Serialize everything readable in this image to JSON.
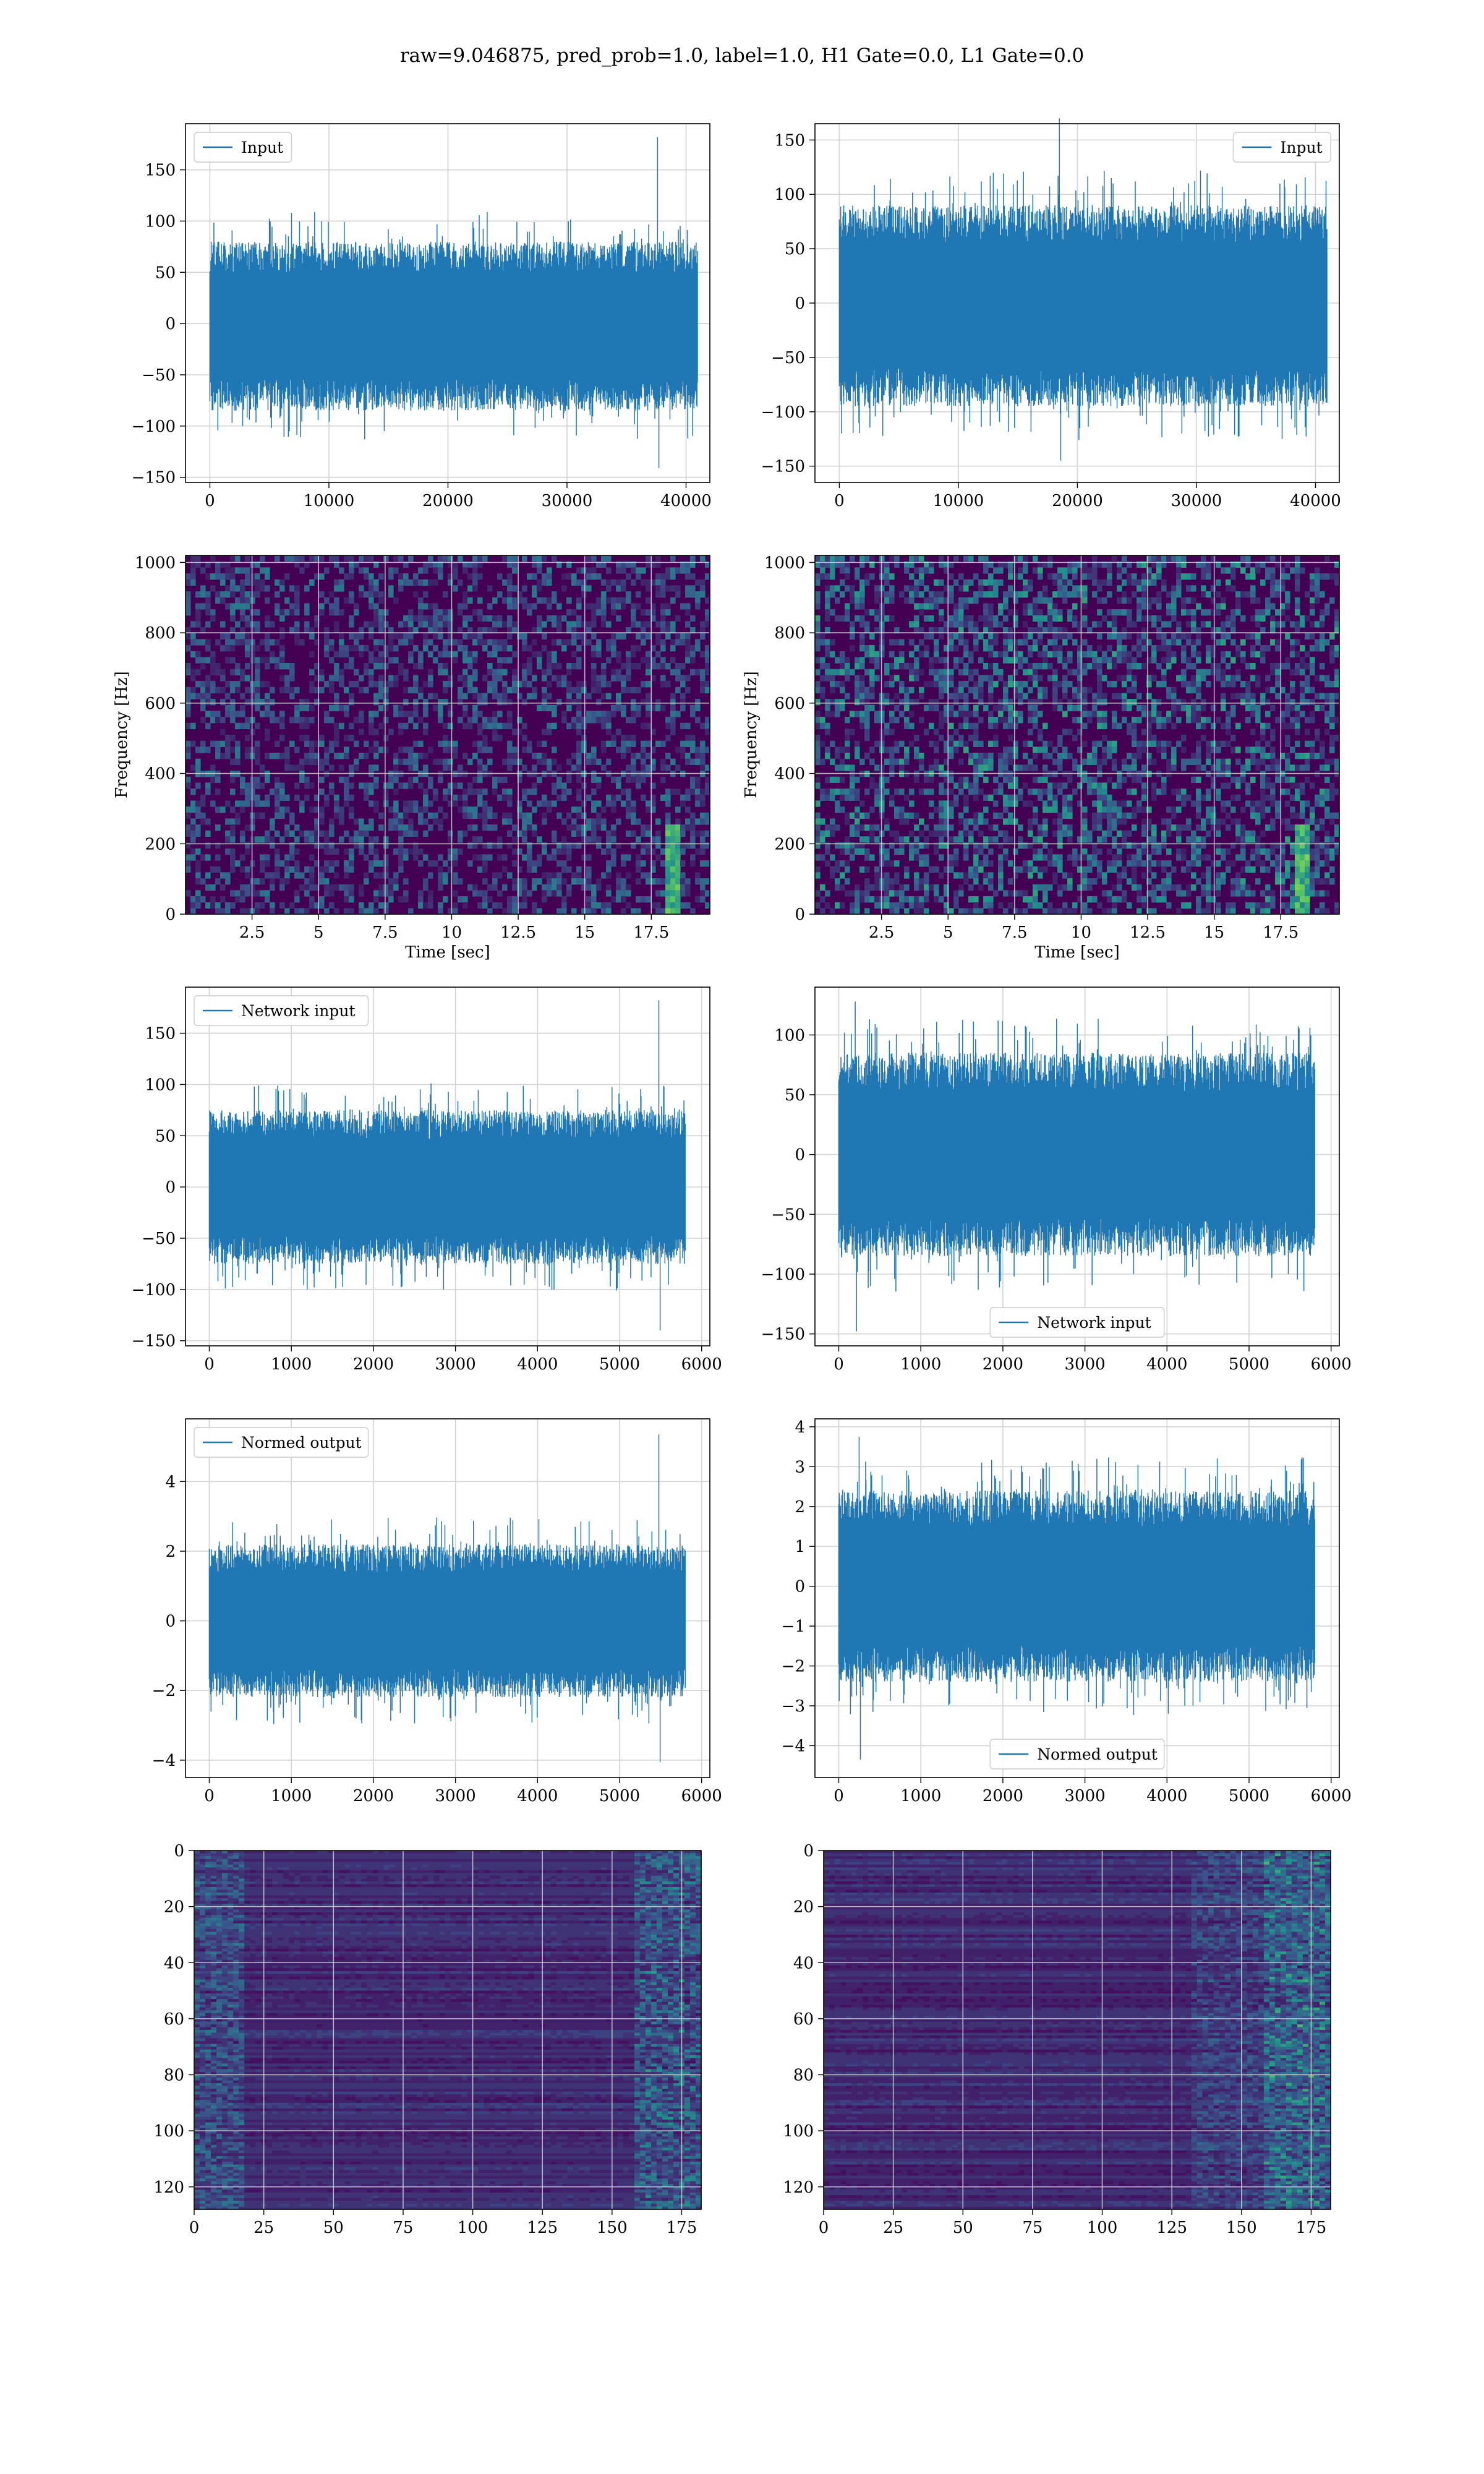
{
  "figure": {
    "suptitle": "raw=9.046875, pred_prob=1.0, label=1.0, H1 Gate=0.0, L1 Gate=0.0",
    "colors": {
      "series": "#1f77b4",
      "grid": "#d3d3d3",
      "axes": "#000000",
      "cmap_low": "#440154",
      "cmap_high": "#fde725"
    }
  },
  "chart_data": [
    {
      "id": "input-h1",
      "type": "line",
      "title": "",
      "xlabel": "",
      "ylabel": "",
      "legend": {
        "label": "Input",
        "loc": "upper left"
      },
      "xlim": [
        -2048,
        42000
      ],
      "ylim": [
        -155,
        195
      ],
      "xticks": [
        0,
        10000,
        20000,
        30000,
        40000
      ],
      "yticks": [
        -150,
        -100,
        -50,
        0,
        50,
        100,
        150
      ],
      "signal": {
        "n_samples": 40960,
        "x_range": [
          0,
          40960
        ],
        "band": [
          -85,
          80
        ],
        "extremes_max": 182,
        "extremes_min": -141,
        "spike_at": 37600
      },
      "grid": true
    },
    {
      "id": "input-l1",
      "type": "line",
      "title": "",
      "xlabel": "",
      "ylabel": "",
      "legend": {
        "label": "Input",
        "loc": "upper right"
      },
      "xlim": [
        -2048,
        42000
      ],
      "ylim": [
        -165,
        165
      ],
      "xticks": [
        0,
        10000,
        20000,
        30000,
        40000
      ],
      "yticks": [
        -150,
        -100,
        -50,
        0,
        50,
        100,
        150
      ],
      "signal": {
        "n_samples": 40960,
        "x_range": [
          0,
          40960
        ],
        "band": [
          -95,
          90
        ],
        "extremes_max": 170,
        "extremes_min": -145,
        "spike_at": 18500
      },
      "grid": true
    },
    {
      "id": "spectrogram-h1",
      "type": "heatmap",
      "title": "",
      "xlabel": "Time [sec]",
      "ylabel": "Frequency [Hz]",
      "xlim": [
        0,
        19.7
      ],
      "ylim": [
        0,
        1020
      ],
      "xticks": [
        2.5,
        5.0,
        7.5,
        10.0,
        12.5,
        15.0,
        17.5
      ],
      "yticks": [
        0,
        200,
        400,
        600,
        800,
        1000
      ],
      "chirp_time": 18.2,
      "grid": true
    },
    {
      "id": "spectrogram-l1",
      "type": "heatmap",
      "title": "",
      "xlabel": "Time [sec]",
      "ylabel": "Frequency [Hz]",
      "xlim": [
        0,
        19.7
      ],
      "ylim": [
        0,
        1020
      ],
      "xticks": [
        2.5,
        5.0,
        7.5,
        10.0,
        12.5,
        15.0,
        17.5
      ],
      "yticks": [
        0,
        200,
        400,
        600,
        800,
        1000
      ],
      "chirp_time": 18.2,
      "grid": true
    },
    {
      "id": "network-input-h1",
      "type": "line",
      "title": "",
      "xlabel": "",
      "ylabel": "",
      "legend": {
        "label": "Network input",
        "loc": "upper left"
      },
      "xlim": [
        -290,
        6100
      ],
      "ylim": [
        -155,
        195
      ],
      "xticks": [
        0,
        1000,
        2000,
        3000,
        4000,
        5000,
        6000
      ],
      "yticks": [
        -150,
        -100,
        -50,
        0,
        50,
        100,
        150
      ],
      "signal": {
        "n_samples": 5800,
        "x_range": [
          0,
          5800
        ],
        "band": [
          -75,
          75
        ],
        "extremes_max": 182,
        "extremes_min": -140,
        "spike_at": 5480
      },
      "grid": true
    },
    {
      "id": "network-input-l1",
      "type": "line",
      "title": "",
      "xlabel": "",
      "ylabel": "",
      "legend": {
        "label": "Network input",
        "loc": "lower center"
      },
      "xlim": [
        -290,
        6100
      ],
      "ylim": [
        -160,
        140
      ],
      "xticks": [
        0,
        1000,
        2000,
        3000,
        4000,
        5000,
        6000
      ],
      "yticks": [
        -150,
        -100,
        -50,
        0,
        50,
        100
      ],
      "signal": {
        "n_samples": 5800,
        "x_range": [
          0,
          5800
        ],
        "band": [
          -85,
          85
        ],
        "extremes_max": 128,
        "extremes_min": -148,
        "spike_at": 200
      },
      "grid": true
    },
    {
      "id": "normed-output-h1",
      "type": "line",
      "title": "",
      "xlabel": "",
      "ylabel": "",
      "legend": {
        "label": "Normed output",
        "loc": "upper left"
      },
      "xlim": [
        -290,
        6100
      ],
      "ylim": [
        -4.5,
        5.8
      ],
      "xticks": [
        0,
        1000,
        2000,
        3000,
        4000,
        5000,
        6000
      ],
      "yticks": [
        -4,
        -2,
        0,
        2,
        4
      ],
      "signal": {
        "n_samples": 5800,
        "x_range": [
          0,
          5800
        ],
        "band": [
          -2.2,
          2.2
        ],
        "extremes_max": 5.35,
        "extremes_min": -4.05,
        "spike_at": 5480
      },
      "grid": true
    },
    {
      "id": "normed-output-l1",
      "type": "line",
      "title": "",
      "xlabel": "",
      "ylabel": "",
      "legend": {
        "label": "Normed output",
        "loc": "lower center"
      },
      "xlim": [
        -290,
        6100
      ],
      "ylim": [
        -4.8,
        4.2
      ],
      "xticks": [
        0,
        1000,
        2000,
        3000,
        4000,
        5000,
        6000
      ],
      "yticks": [
        -4,
        -3,
        -2,
        -1,
        0,
        1,
        2,
        3,
        4
      ],
      "signal": {
        "n_samples": 5800,
        "x_range": [
          0,
          5800
        ],
        "band": [
          -2.4,
          2.4
        ],
        "extremes_max": 3.75,
        "extremes_min": -4.35,
        "spike_at": 250
      },
      "grid": true
    },
    {
      "id": "features-h1",
      "type": "heatmap",
      "title": "",
      "xlabel": "",
      "ylabel": "",
      "xlim": [
        0,
        182
      ],
      "ylim": [
        0,
        128
      ],
      "y_inverted": true,
      "xticks": [
        0,
        25,
        50,
        75,
        100,
        125,
        150,
        175
      ],
      "yticks": [
        0,
        20,
        40,
        60,
        80,
        100,
        120
      ],
      "grid": true
    },
    {
      "id": "features-l1",
      "type": "heatmap",
      "title": "",
      "xlabel": "",
      "ylabel": "",
      "xlim": [
        0,
        182
      ],
      "ylim": [
        0,
        128
      ],
      "y_inverted": true,
      "xticks": [
        0,
        25,
        50,
        75,
        100,
        125,
        150,
        175
      ],
      "yticks": [
        0,
        20,
        40,
        60,
        80,
        100,
        120
      ],
      "grid": true
    }
  ]
}
